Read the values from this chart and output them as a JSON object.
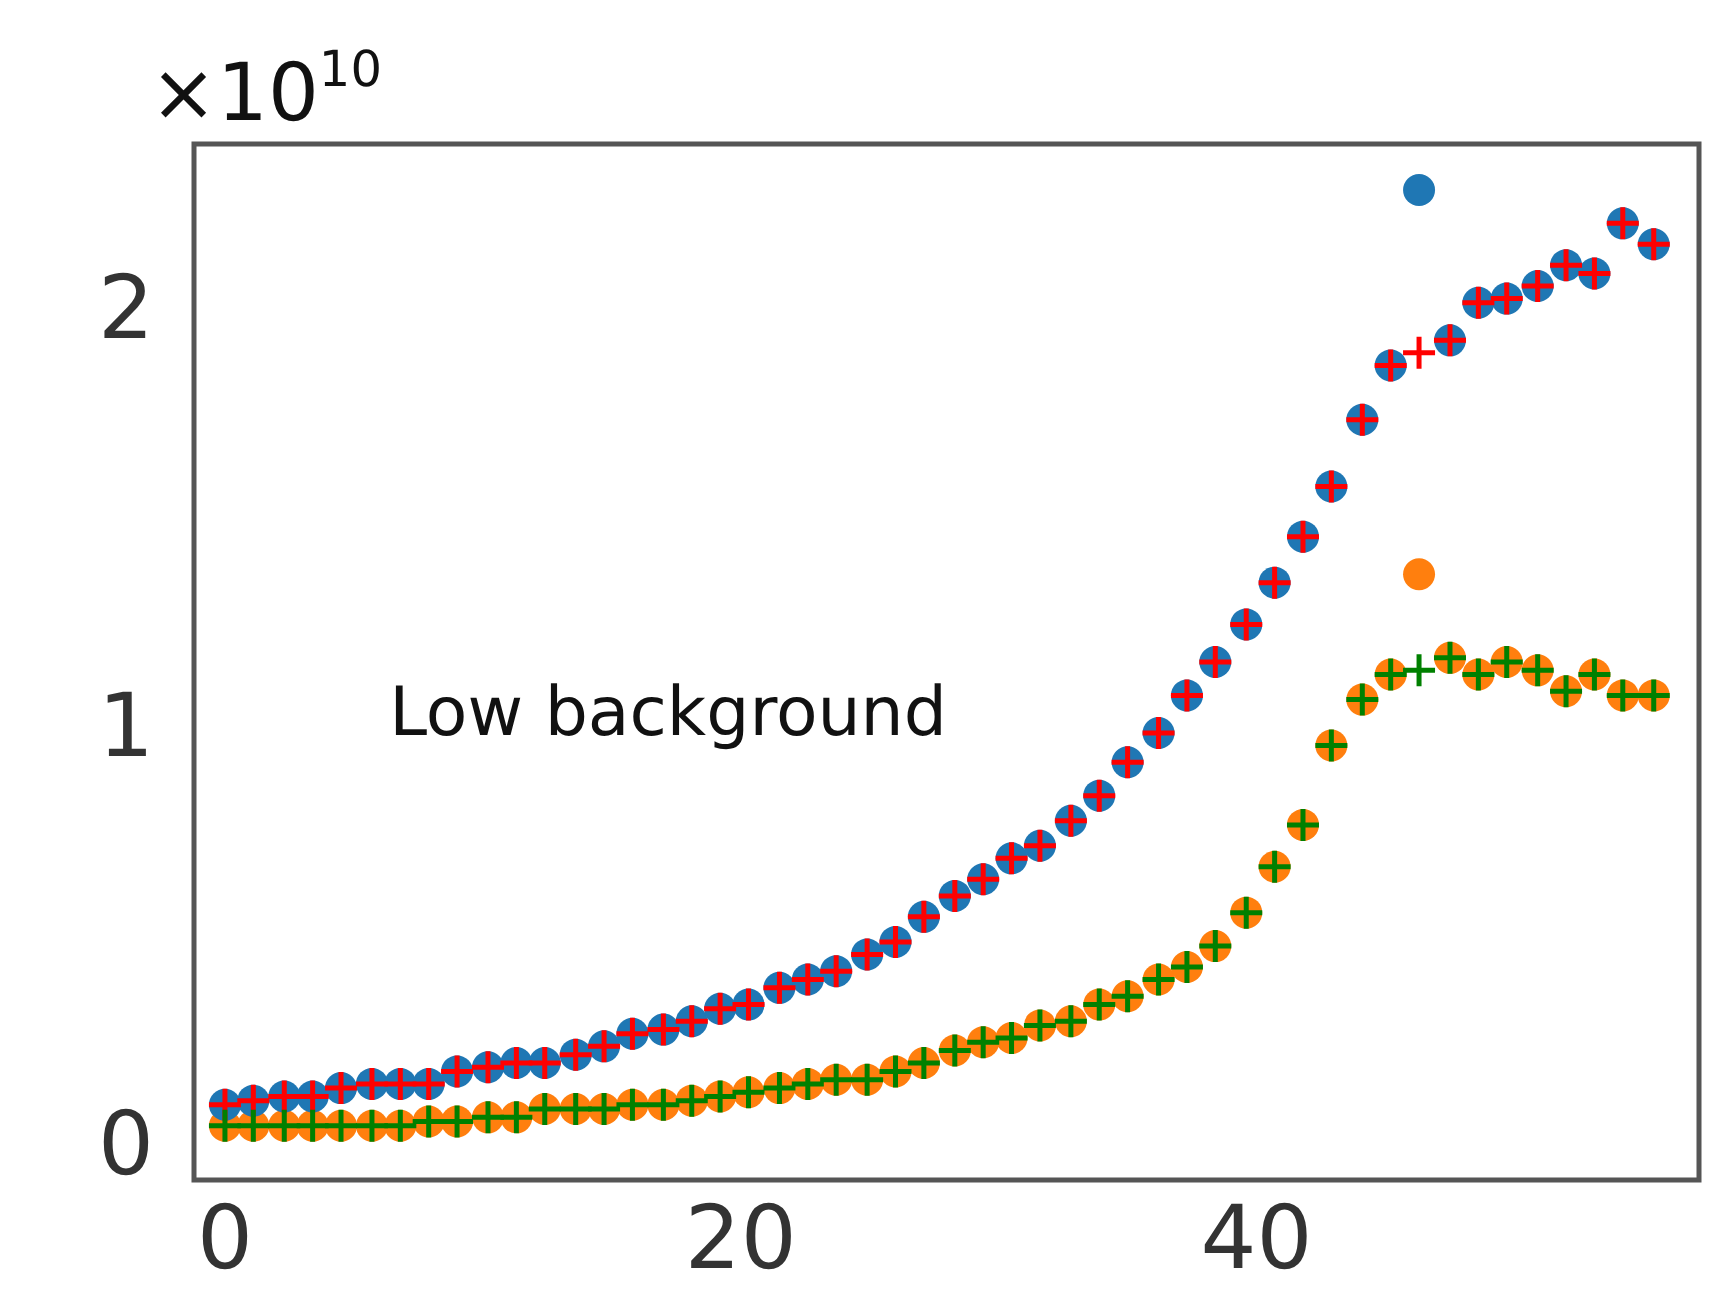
{
  "chart_data": {
    "type": "scatter",
    "x": [
      0,
      1.1,
      2.3,
      3.4,
      4.5,
      5.7,
      6.8,
      7.9,
      9.0,
      10.2,
      11.3,
      12.4,
      13.6,
      14.7,
      15.8,
      17.0,
      18.1,
      19.2,
      20.3,
      21.5,
      22.6,
      23.7,
      24.9,
      26.0,
      27.1,
      28.3,
      29.4,
      30.5,
      31.6,
      32.8,
      33.9,
      35.0,
      36.2,
      37.3,
      38.4,
      39.6,
      40.7,
      41.8,
      42.9,
      44.1,
      45.2,
      46.3,
      47.5,
      48.6,
      49.7,
      50.9,
      52.0,
      53.1,
      54.2,
      55.4
    ],
    "series": [
      {
        "color": "#ff7f0e",
        "marker": "circle",
        "values": [
          0.06,
          0.06,
          0.06,
          0.06,
          0.06,
          0.06,
          0.06,
          0.07,
          0.07,
          0.08,
          0.08,
          0.1,
          0.1,
          0.1,
          0.11,
          0.11,
          0.12,
          0.13,
          0.14,
          0.15,
          0.16,
          0.17,
          0.17,
          0.19,
          0.21,
          0.24,
          0.26,
          0.27,
          0.3,
          0.31,
          0.35,
          0.37,
          0.41,
          0.44,
          0.49,
          0.57,
          0.68,
          0.78,
          0.97,
          1.08,
          1.14,
          1.38,
          1.18,
          1.14,
          1.17,
          1.15,
          1.1,
          1.14,
          1.09,
          1.09
        ]
      },
      {
        "color": "#1f77b4",
        "marker": "circle",
        "values": [
          0.11,
          0.12,
          0.13,
          0.13,
          0.15,
          0.16,
          0.16,
          0.16,
          0.19,
          0.2,
          0.21,
          0.21,
          0.23,
          0.25,
          0.28,
          0.29,
          0.31,
          0.34,
          0.35,
          0.39,
          0.41,
          0.43,
          0.47,
          0.5,
          0.56,
          0.61,
          0.65,
          0.7,
          0.73,
          0.79,
          0.85,
          0.93,
          1.0,
          1.09,
          1.17,
          1.26,
          1.36,
          1.47,
          1.59,
          1.75,
          1.88,
          2.3,
          1.94,
          2.03,
          2.04,
          2.07,
          2.12,
          2.1,
          2.22,
          2.17
        ]
      },
      {
        "color": "#ff0000",
        "marker": "cross",
        "values": [
          0.11,
          0.12,
          0.13,
          0.13,
          0.15,
          0.16,
          0.16,
          0.16,
          0.19,
          0.2,
          0.21,
          0.21,
          0.23,
          0.25,
          0.28,
          0.29,
          0.31,
          0.34,
          0.35,
          0.39,
          0.41,
          0.43,
          0.47,
          0.5,
          0.56,
          0.61,
          0.65,
          0.7,
          0.73,
          0.79,
          0.85,
          0.93,
          1.0,
          1.09,
          1.17,
          1.26,
          1.36,
          1.47,
          1.59,
          1.75,
          1.88,
          1.91,
          1.94,
          2.03,
          2.04,
          2.07,
          2.12,
          2.1,
          2.22,
          2.17
        ]
      },
      {
        "color": "#008000",
        "marker": "cross",
        "values": [
          0.06,
          0.06,
          0.06,
          0.06,
          0.06,
          0.06,
          0.06,
          0.07,
          0.07,
          0.08,
          0.08,
          0.1,
          0.1,
          0.1,
          0.11,
          0.11,
          0.12,
          0.13,
          0.14,
          0.15,
          0.16,
          0.17,
          0.17,
          0.19,
          0.21,
          0.24,
          0.26,
          0.27,
          0.3,
          0.31,
          0.35,
          0.37,
          0.41,
          0.44,
          0.49,
          0.57,
          0.68,
          0.78,
          0.97,
          1.08,
          1.14,
          1.15,
          1.18,
          1.14,
          1.17,
          1.15,
          1.1,
          1.14,
          1.09,
          1.09
        ]
      }
    ],
    "xlim": [
      -1.2,
      57
    ],
    "xticks": [
      0,
      20,
      40
    ],
    "ylim": [
      -0.07,
      2.41
    ],
    "yticks": [
      0,
      1,
      2
    ],
    "annotations": [
      "×10$^{10}$",
      "Low background"
    ]
  }
}
